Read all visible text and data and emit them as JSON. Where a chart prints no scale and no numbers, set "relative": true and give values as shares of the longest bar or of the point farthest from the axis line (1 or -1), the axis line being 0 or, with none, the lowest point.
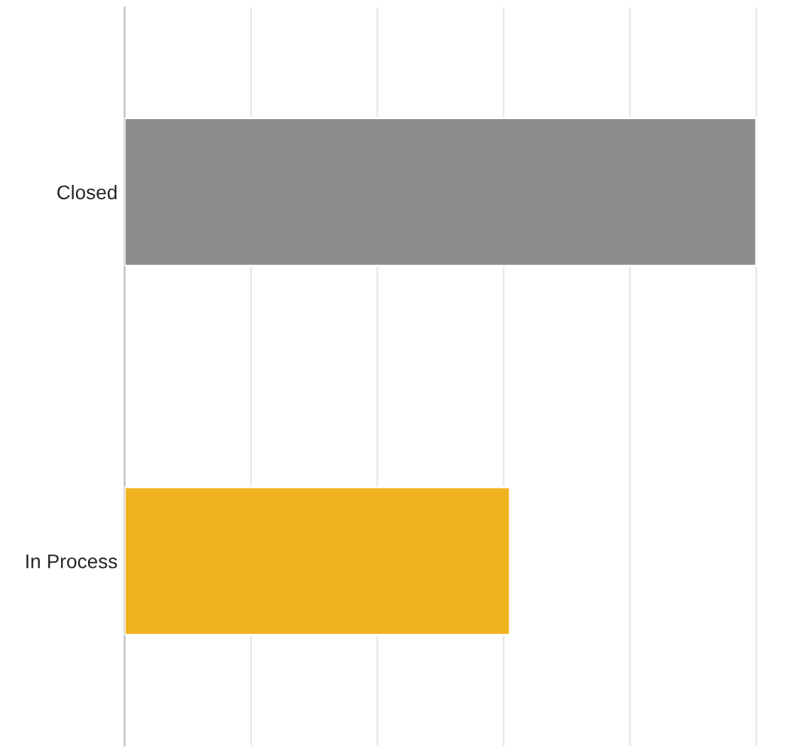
{
  "chart_data": {
    "type": "bar",
    "orientation": "horizontal",
    "relative": true,
    "categories": [
      "Closed",
      "In Process"
    ],
    "values": [
      1,
      0.61
    ],
    "colors": [
      "#8c8c8c",
      "#efb220"
    ],
    "grid": true
  }
}
